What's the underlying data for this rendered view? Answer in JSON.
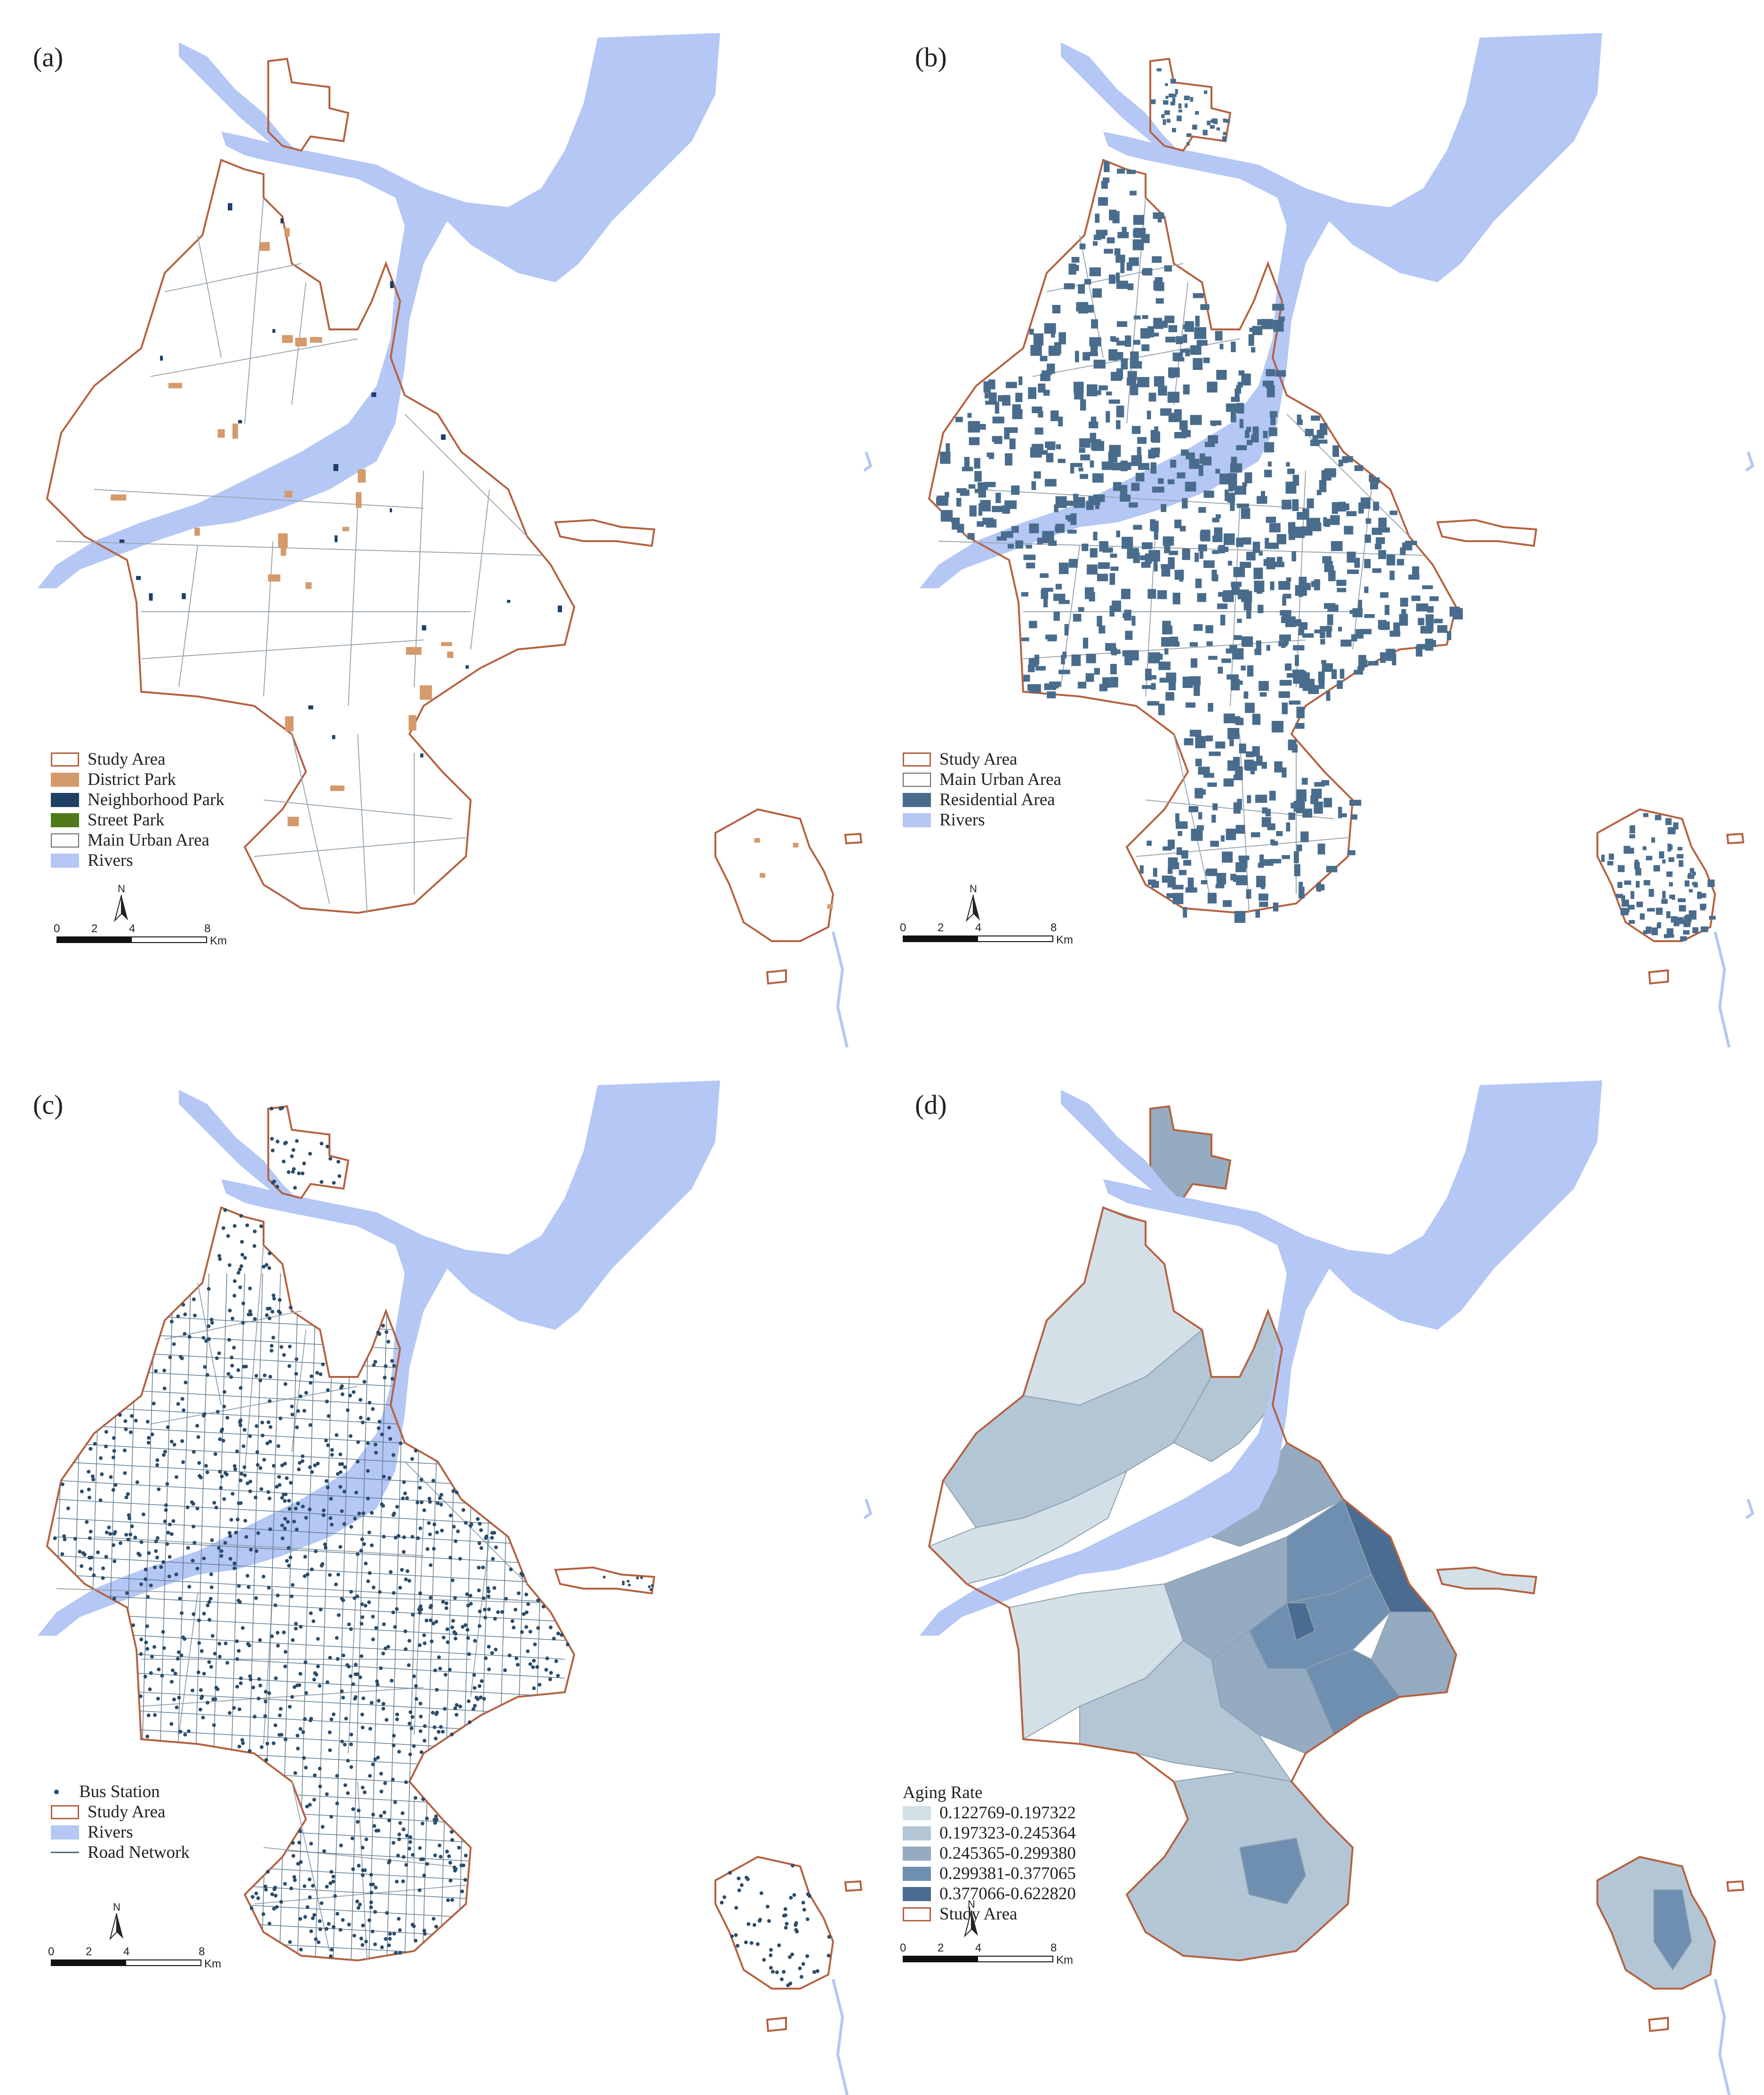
{
  "colors": {
    "river": "#b4c7f5",
    "study_area": "#b5613f",
    "district_park": "#d59a6b",
    "neighborhood_park": "#1f3f66",
    "street_park": "#4f7a1a",
    "residential": "#496c8c",
    "road": "#5f7d92",
    "bus_station": "#2c4d6a",
    "aging": [
      "#d3e0e7",
      "#b3c6d6",
      "#94abc2",
      "#6f8fb0",
      "#4a6c90"
    ]
  },
  "panels": [
    {
      "label": "(a)",
      "legend": [
        {
          "label": "Study Area",
          "type": "outline",
          "color": "#b5613f"
        },
        {
          "label": "District Park",
          "type": "fill",
          "color": "#d59a6b"
        },
        {
          "label": "Neighborhood Park",
          "type": "fill",
          "color": "#1f3f66"
        },
        {
          "label": "Street Park",
          "type": "fill",
          "color": "#4f7a1a"
        },
        {
          "label": "Main Urban Area",
          "type": "plain",
          "color": "#ffffff"
        },
        {
          "label": "Rivers",
          "type": "fill",
          "color": "#b4c7f5"
        }
      ]
    },
    {
      "label": "(b)",
      "legend": [
        {
          "label": "Study Area",
          "type": "outline",
          "color": "#b5613f"
        },
        {
          "label": "Main Urban Area",
          "type": "plain",
          "color": "#ffffff"
        },
        {
          "label": "Residential Area",
          "type": "fill",
          "color": "#496c8c"
        },
        {
          "label": "Rivers",
          "type": "fill",
          "color": "#b4c7f5"
        }
      ]
    },
    {
      "label": "(c)",
      "legend": [
        {
          "label": "Bus Station",
          "type": "dot",
          "color": "#2c4d6a"
        },
        {
          "label": "Study Area",
          "type": "outline",
          "color": "#b5613f"
        },
        {
          "label": "Rivers",
          "type": "fill",
          "color": "#b4c7f5"
        },
        {
          "label": "Road Network",
          "type": "line",
          "color": "#4a6a83"
        }
      ]
    },
    {
      "label": "(d)",
      "legend_title": "Aging Rate",
      "legend": [
        {
          "label": "0.122769-0.197322",
          "type": "fill",
          "color": "#d3e0e7"
        },
        {
          "label": "0.197323-0.245364",
          "type": "fill",
          "color": "#b3c6d6"
        },
        {
          "label": "0.245365-0.299380",
          "type": "fill",
          "color": "#94abc2"
        },
        {
          "label": "0.299381-0.377065",
          "type": "fill",
          "color": "#6f8fb0"
        },
        {
          "label": "0.377066-0.622820",
          "type": "fill",
          "color": "#4a6c90"
        },
        {
          "label": "Study Area",
          "type": "outline",
          "color": "#b5613f"
        }
      ]
    }
  ],
  "scale_bar": {
    "ticks": [
      "0",
      "2",
      "4",
      "8"
    ],
    "unit": "Km"
  },
  "north_arrow": {
    "label": "N"
  }
}
